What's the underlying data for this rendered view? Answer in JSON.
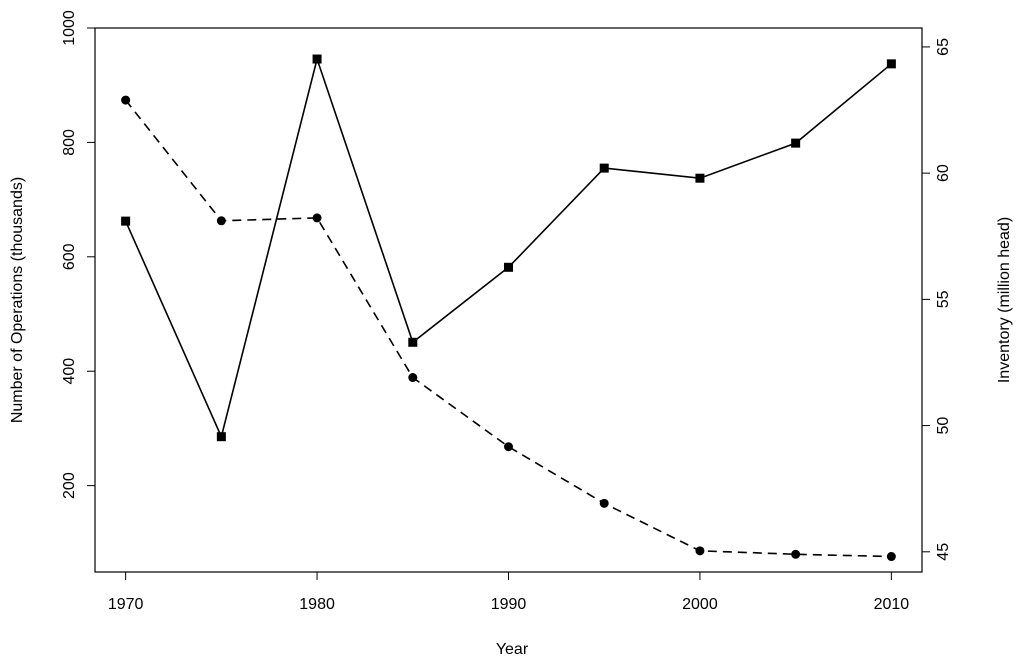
{
  "chart_data": {
    "type": "line",
    "x_label": "Year",
    "y_label": "Number of Operations (thousands)",
    "y2_label": "Inventory (million head)",
    "x": [
      1970,
      1975,
      1980,
      1985,
      1990,
      1995,
      2000,
      2005,
      2010
    ],
    "xlim": [
      1968.4,
      2011.6
    ],
    "xticks": [
      1970,
      1980,
      1990,
      2000,
      2010
    ],
    "ylim": [
      49,
      1000
    ],
    "yticks": [
      200,
      400,
      600,
      800,
      1000
    ],
    "y2lim": [
      44.2,
      65.75
    ],
    "y2ticks": [
      45,
      50,
      55,
      60,
      65
    ],
    "series": [
      {
        "color": "#000000",
        "dash": true,
        "marker": "circle",
        "values": [
          874,
          663,
          668,
          389,
          268,
          169,
          86,
          80,
          76
        ]
      },
      {
        "color": "#000000",
        "dash": false,
        "marker": "square",
        "axis": "y2",
        "values": [
          58.1,
          49.56,
          64.52,
          53.3,
          56.27,
          60.2,
          59.8,
          61.19,
          64.33
        ]
      }
    ]
  }
}
